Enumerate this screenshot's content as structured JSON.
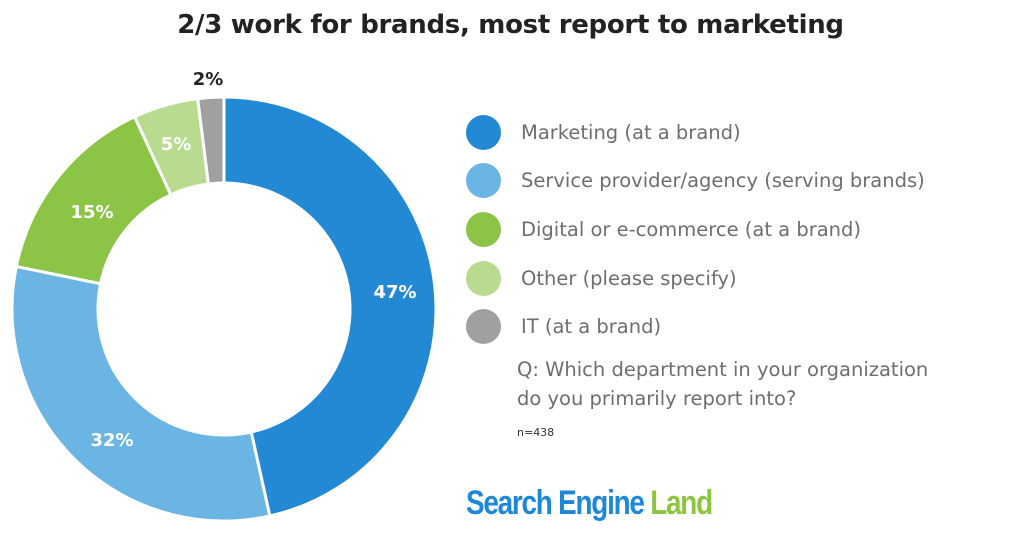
{
  "title": "2/3 work for brands, most report to marketing",
  "legend": {
    "items": [
      {
        "label": "Marketing (at a brand)",
        "color": "#2389d5"
      },
      {
        "label": "Service provider/agency (serving brands)",
        "color": "#6bb5e4"
      },
      {
        "label": "Digital or e-commerce (at a brand)",
        "color": "#8cc445"
      },
      {
        "label": "Other (please specify)",
        "color": "#b8db8f"
      },
      {
        "label": "IT (at a brand)",
        "color": "#a0a0a0"
      }
    ]
  },
  "question": {
    "line1": "Q: Which department in your organization",
    "line2": "do you primarily report into?"
  },
  "sample_size": "n=438",
  "logo": {
    "part1": "Search Engine",
    "part2": "Land"
  },
  "labels": {
    "marketing": "47%",
    "service": "32%",
    "digital": "15%",
    "other": "5%",
    "it": "2%"
  },
  "chart_data": {
    "type": "pie",
    "variant": "donut",
    "title": "2/3 work for brands, most report to marketing",
    "categories": [
      "Marketing (at a brand)",
      "Service provider/agency (serving brands)",
      "Digital or e-commerce (at a brand)",
      "Other (please specify)",
      "IT (at a brand)"
    ],
    "values": [
      47,
      32,
      15,
      5,
      2
    ],
    "value_labels": [
      "47%",
      "32%",
      "15%",
      "5%",
      "2%"
    ],
    "colors": [
      "#2389d5",
      "#6bb5e4",
      "#8cc445",
      "#b8db8f",
      "#a0a0a0"
    ],
    "start_angle": "12 o'clock, clockwise",
    "legend_position": "right",
    "annotation": "Q: Which department in your organization do you primarily report into?",
    "sample_size": "n=438",
    "source": "Search Engine Land"
  }
}
